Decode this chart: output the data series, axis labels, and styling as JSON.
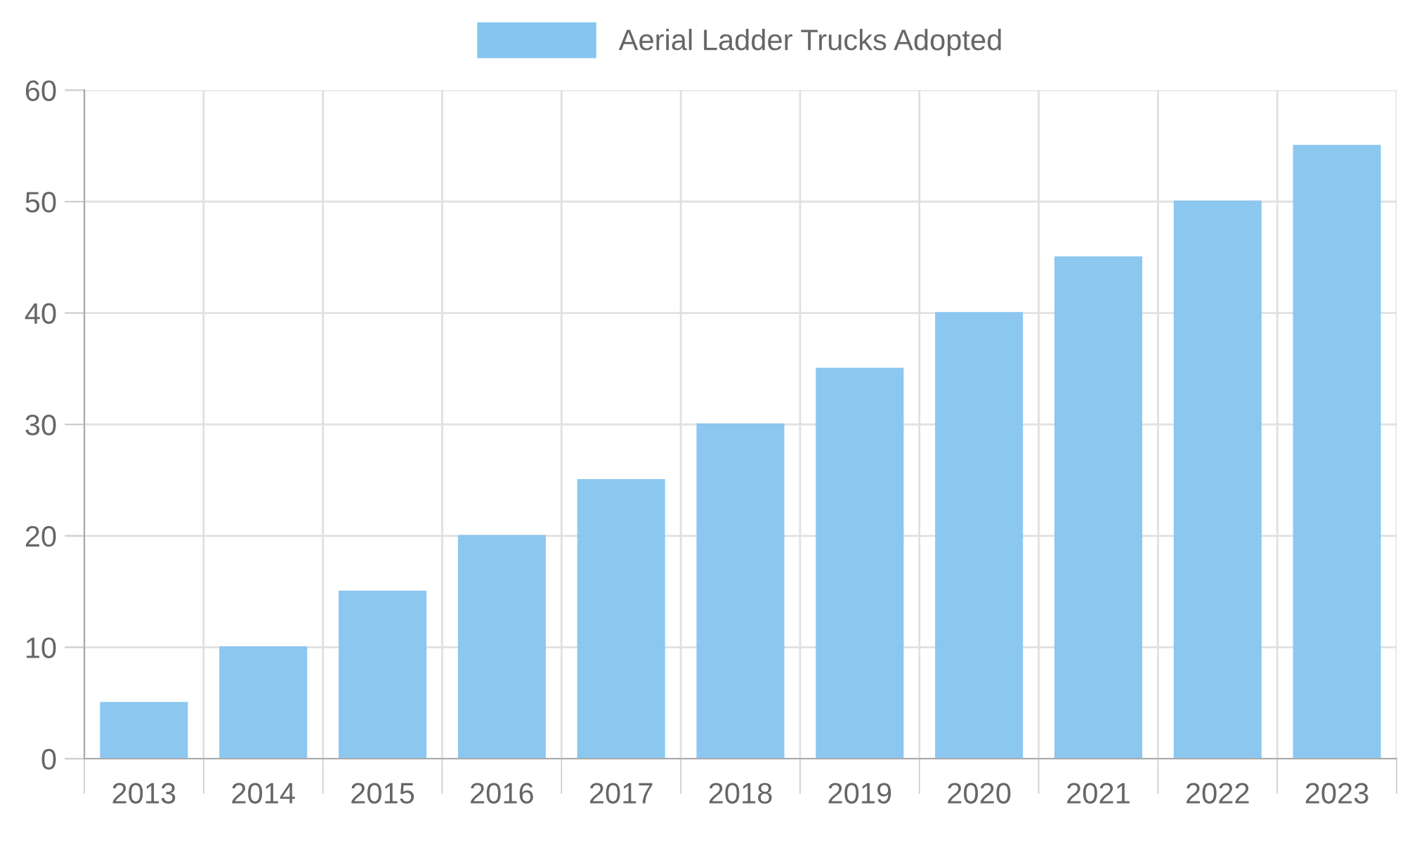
{
  "chart_data": {
    "type": "bar",
    "categories": [
      "2013",
      "2014",
      "2015",
      "2016",
      "2017",
      "2018",
      "2019",
      "2020",
      "2021",
      "2022",
      "2023"
    ],
    "series": [
      {
        "name": "Aerial Ladder Trucks Adopted",
        "color": "#86c5f0",
        "values": [
          5,
          10,
          15,
          20,
          25,
          30,
          35,
          40,
          45,
          50,
          55
        ]
      }
    ],
    "ylim": [
      0,
      60
    ],
    "yticks": [
      0,
      10,
      20,
      30,
      40,
      50,
      60
    ],
    "grid": true,
    "legend": "top"
  }
}
